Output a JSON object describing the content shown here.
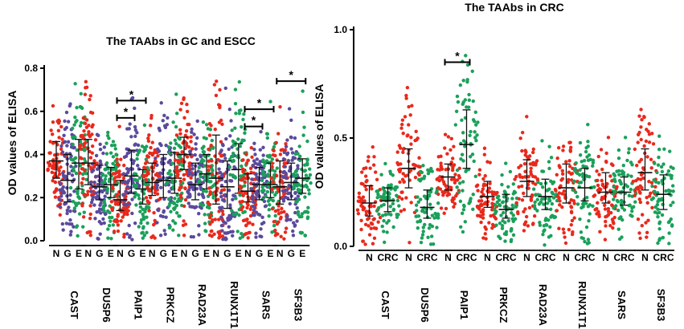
{
  "chart_data": [
    {
      "type": "scatter",
      "title": "The TAAbs in GC and ESCC",
      "ylabel": "OD values of ELISA",
      "ylim": [
        0,
        0.8
      ],
      "yticks": [
        "0.0",
        "0.2",
        "0.4",
        "0.6",
        "0.8"
      ],
      "subgroups": [
        "N",
        "G",
        "E"
      ],
      "subgroup_colors": [
        "#e8291c",
        "#5a4a9c",
        "#1aa05a"
      ],
      "genes": [
        {
          "name": "CAST",
          "medians": [
            0.37,
            0.28,
            0.36
          ],
          "q1": [
            0.29,
            0.18,
            0.24
          ],
          "q3": [
            0.46,
            0.4,
            0.47
          ]
        },
        {
          "name": "DUSP6",
          "medians": [
            0.36,
            0.25,
            0.26
          ],
          "q1": [
            0.26,
            0.19,
            0.2
          ],
          "q3": [
            0.47,
            0.35,
            0.34
          ]
        },
        {
          "name": "PAIP1",
          "medians": [
            0.19,
            0.3,
            0.24
          ],
          "q1": [
            0.14,
            0.22,
            0.17
          ],
          "q3": [
            0.28,
            0.42,
            0.33
          ]
        },
        {
          "name": "PRKCZ",
          "medians": [
            0.27,
            0.28,
            0.29
          ],
          "q1": [
            0.21,
            0.2,
            0.22
          ],
          "q3": [
            0.36,
            0.4,
            0.41
          ]
        },
        {
          "name": "RAD23A",
          "medians": [
            0.4,
            0.26,
            0.31
          ],
          "q1": [
            0.33,
            0.19,
            0.24
          ],
          "q3": [
            0.48,
            0.36,
            0.4
          ]
        },
        {
          "name": "RUNX1T1",
          "medians": [
            0.29,
            0.25,
            0.33
          ],
          "q1": [
            0.17,
            0.15,
            0.22
          ],
          "q3": [
            0.49,
            0.37,
            0.45
          ]
        },
        {
          "name": "SARS",
          "medians": [
            0.23,
            0.26,
            0.26
          ],
          "q1": [
            0.18,
            0.19,
            0.2
          ],
          "q3": [
            0.31,
            0.34,
            0.36
          ]
        },
        {
          "name": "SF3B3",
          "medians": [
            0.25,
            0.27,
            0.29
          ],
          "q1": [
            0.17,
            0.19,
            0.22
          ],
          "q3": [
            0.37,
            0.36,
            0.38
          ]
        }
      ],
      "significance": [
        {
          "gene": "PAIP1",
          "pair": [
            "N",
            "G"
          ],
          "y": 0.57,
          "label": "*"
        },
        {
          "gene": "PAIP1",
          "pair": [
            "N",
            "E"
          ],
          "y": 0.65,
          "label": "*"
        },
        {
          "gene": "SARS",
          "pair": [
            "N",
            "G"
          ],
          "y": 0.53,
          "label": "*"
        },
        {
          "gene": "SARS",
          "pair": [
            "N",
            "E"
          ],
          "y": 0.61,
          "label": "*"
        },
        {
          "gene": "SF3B3",
          "pair": [
            "N",
            "E"
          ],
          "y": 0.74,
          "label": "*"
        }
      ]
    },
    {
      "type": "scatter",
      "title": "The TAAbs in CRC",
      "ylabel": "OD values of ELISA",
      "ylim": [
        0,
        1.0
      ],
      "yticks": [
        "0.0",
        "0.5",
        "1.0"
      ],
      "subgroups": [
        "N",
        "CRC"
      ],
      "subgroup_colors": [
        "#e8291c",
        "#1aa05a"
      ],
      "genes": [
        {
          "name": "CAST",
          "medians": [
            0.2,
            0.21
          ],
          "q1": [
            0.14,
            0.16
          ],
          "q3": [
            0.28,
            0.27
          ]
        },
        {
          "name": "DUSP6",
          "medians": [
            0.36,
            0.18
          ],
          "q1": [
            0.27,
            0.13
          ],
          "q3": [
            0.45,
            0.26
          ]
        },
        {
          "name": "PAIP1",
          "medians": [
            0.32,
            0.47
          ],
          "q1": [
            0.26,
            0.36
          ],
          "q3": [
            0.38,
            0.63
          ]
        },
        {
          "name": "PRKCZ",
          "medians": [
            0.23,
            0.17
          ],
          "q1": [
            0.18,
            0.13
          ],
          "q3": [
            0.3,
            0.24
          ]
        },
        {
          "name": "RAD23A",
          "medians": [
            0.3,
            0.23
          ],
          "q1": [
            0.23,
            0.17
          ],
          "q3": [
            0.4,
            0.31
          ]
        },
        {
          "name": "RUNX1T1",
          "medians": [
            0.27,
            0.27
          ],
          "q1": [
            0.2,
            0.21
          ],
          "q3": [
            0.38,
            0.36
          ]
        },
        {
          "name": "SARS",
          "medians": [
            0.25,
            0.25
          ],
          "q1": [
            0.2,
            0.19
          ],
          "q3": [
            0.34,
            0.32
          ]
        },
        {
          "name": "SF3B3",
          "medians": [
            0.34,
            0.24
          ],
          "q1": [
            0.26,
            0.17
          ],
          "q3": [
            0.45,
            0.33
          ]
        }
      ],
      "significance": [
        {
          "gene": "PAIP1",
          "pair": [
            "N",
            "CRC"
          ],
          "y": 0.85,
          "label": "*"
        }
      ]
    }
  ]
}
